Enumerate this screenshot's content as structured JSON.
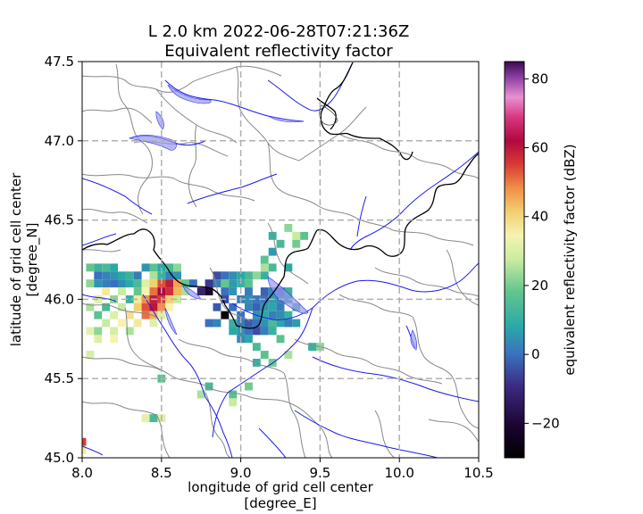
{
  "title": {
    "line1": "L 2.0 km 2022-06-28T07:21:36Z",
    "line2": "Equivalent reflectivity factor"
  },
  "chart_data": {
    "type": "heatmap",
    "title": "L 2.0 km 2022-06-28T07:21:36Z Equivalent reflectivity factor",
    "xlabel": [
      "longitude of grid cell center",
      "[degree_E]"
    ],
    "ylabel": [
      "latitude of grid cell center",
      "[degree_N]"
    ],
    "xlim": [
      8.0,
      10.5
    ],
    "ylim": [
      45.0,
      47.5
    ],
    "x_ticks": [
      8.0,
      8.5,
      9.0,
      9.5,
      10.0,
      10.5
    ],
    "x_tick_labels": [
      "8.0",
      "8.5",
      "9.0",
      "9.5",
      "10.0",
      "10.5"
    ],
    "y_ticks": [
      45.0,
      45.5,
      46.0,
      46.5,
      47.0,
      47.5
    ],
    "y_tick_labels": [
      "45.0",
      "45.5",
      "46.0",
      "46.5",
      "47.0",
      "47.5"
    ],
    "grid": true,
    "colorbar": {
      "label": "equivalent reflectivity factor (dBZ)",
      "range": [
        -30,
        85
      ],
      "ticks": [
        -20,
        0,
        20,
        40,
        60,
        80
      ],
      "tick_labels": [
        "−20",
        "0",
        "20",
        "40",
        "60",
        "80"
      ],
      "colormap": "pyart_HomeyerRainbow"
    },
    "cells": [
      [
        8.05,
        46.2,
        15
      ],
      [
        8.1,
        46.2,
        10
      ],
      [
        8.15,
        46.2,
        12
      ],
      [
        8.2,
        46.2,
        8
      ],
      [
        8.4,
        46.2,
        5
      ],
      [
        8.45,
        46.2,
        14
      ],
      [
        8.5,
        46.2,
        8
      ],
      [
        8.55,
        46.2,
        12
      ],
      [
        8.6,
        46.2,
        18
      ],
      [
        8.1,
        46.15,
        0
      ],
      [
        8.15,
        46.15,
        3
      ],
      [
        8.2,
        46.15,
        5
      ],
      [
        8.25,
        46.15,
        8
      ],
      [
        8.3,
        46.15,
        10
      ],
      [
        8.35,
        46.15,
        2
      ],
      [
        8.45,
        46.15,
        20
      ],
      [
        8.5,
        46.15,
        10
      ],
      [
        8.55,
        46.15,
        2
      ],
      [
        8.6,
        46.15,
        5
      ],
      [
        8.05,
        46.1,
        18
      ],
      [
        8.1,
        46.1,
        5
      ],
      [
        8.15,
        46.1,
        2
      ],
      [
        8.2,
        46.1,
        0
      ],
      [
        8.25,
        46.1,
        4
      ],
      [
        8.3,
        46.1,
        8
      ],
      [
        8.35,
        46.1,
        12
      ],
      [
        8.4,
        46.1,
        25
      ],
      [
        8.45,
        46.1,
        35
      ],
      [
        8.5,
        46.1,
        48
      ],
      [
        8.55,
        46.1,
        55
      ],
      [
        8.6,
        46.1,
        40
      ],
      [
        8.65,
        46.1,
        15
      ],
      [
        8.7,
        46.1,
        0
      ],
      [
        8.15,
        46.05,
        30
      ],
      [
        8.25,
        46.05,
        22
      ],
      [
        8.35,
        46.05,
        15
      ],
      [
        8.4,
        46.05,
        28
      ],
      [
        8.45,
        46.05,
        45
      ],
      [
        8.5,
        46.05,
        58
      ],
      [
        8.55,
        46.05,
        52
      ],
      [
        8.6,
        46.05,
        38
      ],
      [
        8.65,
        46.05,
        20
      ],
      [
        8.1,
        46.0,
        25
      ],
      [
        8.2,
        46.0,
        18
      ],
      [
        8.3,
        46.0,
        10
      ],
      [
        8.35,
        46.0,
        30
      ],
      [
        8.4,
        46.0,
        42
      ],
      [
        8.45,
        46.0,
        55
      ],
      [
        8.5,
        46.0,
        50
      ],
      [
        8.55,
        46.0,
        35
      ],
      [
        8.6,
        46.0,
        22
      ],
      [
        8.05,
        45.95,
        20
      ],
      [
        8.15,
        45.95,
        12
      ],
      [
        8.25,
        45.95,
        22
      ],
      [
        8.35,
        45.95,
        35
      ],
      [
        8.4,
        45.95,
        48
      ],
      [
        8.45,
        45.95,
        56
      ],
      [
        8.5,
        45.95,
        42
      ],
      [
        8.55,
        45.95,
        28
      ],
      [
        8.1,
        45.9,
        14
      ],
      [
        8.2,
        45.9,
        25
      ],
      [
        8.3,
        45.9,
        32
      ],
      [
        8.4,
        45.9,
        45
      ],
      [
        8.45,
        45.9,
        38
      ],
      [
        8.5,
        45.9,
        25
      ],
      [
        8.15,
        45.85,
        22
      ],
      [
        8.25,
        45.85,
        28
      ],
      [
        8.35,
        45.85,
        30
      ],
      [
        8.45,
        45.85,
        25
      ],
      [
        8.05,
        45.8,
        26
      ],
      [
        8.1,
        45.8,
        18
      ],
      [
        8.2,
        45.8,
        24
      ],
      [
        8.3,
        45.8,
        20
      ],
      [
        8.1,
        45.75,
        25
      ],
      [
        8.2,
        45.75,
        28
      ],
      [
        8.05,
        45.65,
        24
      ],
      [
        8.5,
        45.5,
        14
      ],
      [
        8.8,
        45.45,
        12
      ],
      [
        8.95,
        45.4,
        14
      ],
      [
        9.05,
        45.45,
        16
      ],
      [
        8.95,
        45.35,
        22
      ],
      [
        8.75,
        45.4,
        20
      ],
      [
        8.45,
        45.25,
        12
      ],
      [
        8.5,
        45.25,
        25
      ],
      [
        8.4,
        45.25,
        26
      ],
      [
        8.0,
        45.1,
        50
      ],
      [
        8.0,
        45.05,
        30
      ],
      [
        8.85,
        46.15,
        -5
      ],
      [
        8.9,
        46.15,
        0
      ],
      [
        8.95,
        46.15,
        4
      ],
      [
        9.0,
        46.15,
        8
      ],
      [
        9.05,
        46.15,
        12
      ],
      [
        9.1,
        46.15,
        18
      ],
      [
        9.15,
        46.15,
        10
      ],
      [
        8.8,
        46.1,
        -8
      ],
      [
        8.85,
        46.1,
        2
      ],
      [
        8.9,
        46.1,
        15
      ],
      [
        8.95,
        46.1,
        6
      ],
      [
        9.0,
        46.1,
        10
      ],
      [
        9.05,
        46.1,
        14
      ],
      [
        8.75,
        46.05,
        -12
      ],
      [
        8.8,
        46.05,
        -20
      ],
      [
        8.9,
        46.05,
        0
      ],
      [
        8.95,
        46.05,
        5
      ],
      [
        9.05,
        46.05,
        2
      ],
      [
        9.15,
        46.05,
        -2
      ],
      [
        9.2,
        46.05,
        4
      ],
      [
        9.25,
        46.05,
        0
      ],
      [
        9.3,
        46.05,
        10
      ],
      [
        8.9,
        46.0,
        -5
      ],
      [
        9.0,
        46.0,
        2
      ],
      [
        9.05,
        46.0,
        4
      ],
      [
        9.1,
        46.0,
        1
      ],
      [
        9.15,
        46.0,
        0
      ],
      [
        9.2,
        46.0,
        6
      ],
      [
        9.25,
        46.0,
        3
      ],
      [
        9.3,
        46.0,
        8
      ],
      [
        8.85,
        45.95,
        -3
      ],
      [
        8.95,
        45.95,
        0
      ],
      [
        9.05,
        45.95,
        3
      ],
      [
        9.1,
        45.95,
        -2
      ],
      [
        9.15,
        45.95,
        5
      ],
      [
        9.2,
        45.95,
        8
      ],
      [
        9.25,
        45.95,
        2
      ],
      [
        9.35,
        45.95,
        12
      ],
      [
        8.9,
        45.9,
        -30
      ],
      [
        9.0,
        45.9,
        0
      ],
      [
        9.1,
        45.9,
        5
      ],
      [
        9.15,
        45.9,
        8
      ],
      [
        9.2,
        45.9,
        2
      ],
      [
        9.25,
        45.9,
        4
      ],
      [
        9.3,
        45.9,
        10
      ],
      [
        8.8,
        45.85,
        0
      ],
      [
        8.85,
        45.85,
        3
      ],
      [
        8.95,
        45.85,
        10
      ],
      [
        9.0,
        45.85,
        2
      ],
      [
        9.05,
        45.85,
        -3
      ],
      [
        9.1,
        45.85,
        0
      ],
      [
        9.15,
        45.85,
        5
      ],
      [
        9.2,
        45.85,
        12
      ],
      [
        9.25,
        45.85,
        8
      ],
      [
        9.3,
        45.85,
        2
      ],
      [
        9.35,
        45.85,
        6
      ],
      [
        8.95,
        45.8,
        8
      ],
      [
        9.0,
        45.8,
        5
      ],
      [
        9.05,
        45.8,
        0
      ],
      [
        9.1,
        45.8,
        -5
      ],
      [
        9.15,
        45.8,
        2
      ],
      [
        9.2,
        45.8,
        10
      ],
      [
        9.0,
        45.75,
        4
      ],
      [
        9.05,
        45.75,
        8
      ],
      [
        9.25,
        45.75,
        14
      ],
      [
        9.5,
        45.7,
        18
      ],
      [
        9.45,
        45.7,
        10
      ],
      [
        9.1,
        45.7,
        12
      ],
      [
        9.15,
        45.65,
        14
      ],
      [
        9.3,
        45.65,
        20
      ],
      [
        9.2,
        45.6,
        16
      ],
      [
        9.1,
        45.6,
        10
      ],
      [
        9.15,
        46.25,
        14
      ],
      [
        9.2,
        46.2,
        12
      ],
      [
        9.3,
        46.2,
        8
      ],
      [
        9.15,
        46.2,
        20
      ],
      [
        9.25,
        46.35,
        12
      ],
      [
        9.2,
        46.4,
        10
      ],
      [
        9.3,
        46.45,
        18
      ],
      [
        9.35,
        46.4,
        22
      ],
      [
        9.4,
        46.4,
        14
      ],
      [
        9.2,
        46.3,
        6
      ],
      [
        9.35,
        46.35,
        16
      ]
    ]
  }
}
